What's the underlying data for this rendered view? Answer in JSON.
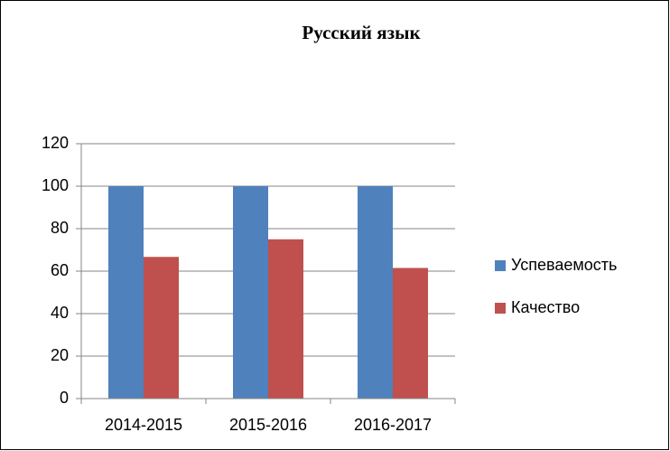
{
  "chart_data": {
    "type": "bar",
    "title": "Русский язык",
    "categories": [
      "2014-2015",
      "2015-2016",
      "2016-2017"
    ],
    "series": [
      {
        "name": "Успеваемость",
        "color": "#4f81bd",
        "values": [
          100,
          100,
          100
        ]
      },
      {
        "name": "Качество",
        "color": "#c0504d",
        "values": [
          66.7,
          75,
          61.5
        ]
      }
    ],
    "ylim": [
      0,
      120
    ],
    "yticks": [
      0,
      20,
      40,
      60,
      80,
      100,
      120
    ],
    "grid": true,
    "legend": "right"
  }
}
